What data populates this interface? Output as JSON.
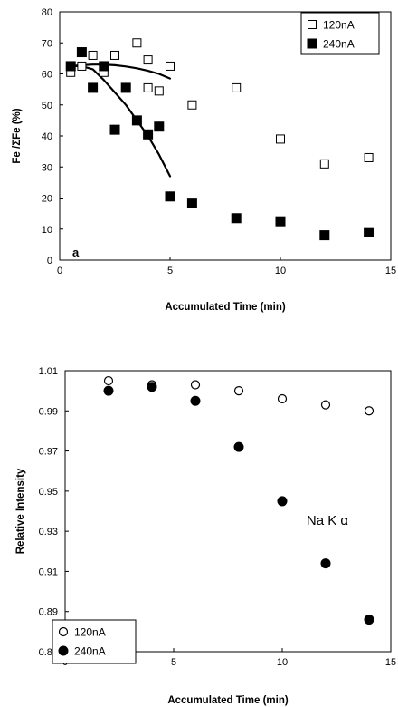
{
  "chart_data": [
    {
      "type": "scatter",
      "title": "",
      "xlabel": "Accumulated Time (min)",
      "ylabel": "Fe /ΣFe (%)",
      "xlim": [
        0,
        15
      ],
      "ylim": [
        0,
        80
      ],
      "xticks": [
        0,
        5,
        10,
        15
      ],
      "yticks": [
        0,
        10,
        20,
        30,
        40,
        50,
        60,
        70,
        80
      ],
      "grid": false,
      "legend_position": "top-right",
      "annotation": "a",
      "series": [
        {
          "name": "120nA",
          "marker": "open-square",
          "color": "#000000",
          "x": [
            0.5,
            1,
            1.5,
            2,
            2.5,
            3.5,
            4,
            4,
            4.5,
            5,
            6,
            8,
            10,
            12,
            14
          ],
          "y": [
            60.5,
            62.5,
            66,
            60.5,
            66,
            70,
            55.5,
            64.5,
            54.5,
            62.5,
            50,
            55.5,
            39,
            31,
            33
          ]
        },
        {
          "name": "240nA",
          "marker": "filled-square",
          "color": "#000000",
          "x": [
            0.5,
            1,
            1.5,
            2,
            2.5,
            3,
            3.5,
            4,
            4.5,
            5,
            6,
            8,
            10,
            12,
            14
          ],
          "y": [
            62.5,
            67,
            55.5,
            62.5,
            42,
            55.5,
            45,
            40.5,
            43,
            20.5,
            18.5,
            13.5,
            12.5,
            8,
            9
          ]
        }
      ],
      "curves": [
        {
          "of": "120nA",
          "x": [
            0.5,
            1,
            1.5,
            2,
            2.5,
            3,
            3.5,
            4,
            4.5,
            5
          ],
          "y": [
            62.5,
            62.8,
            63,
            63,
            62.8,
            62.4,
            61.8,
            61,
            60,
            58.5
          ]
        },
        {
          "of": "240nA",
          "x": [
            0.5,
            1,
            1.5,
            2,
            2.5,
            3,
            3.5,
            4,
            4.5,
            5
          ],
          "y": [
            62.5,
            62.5,
            61.5,
            58,
            54,
            50,
            45,
            40,
            34,
            27
          ]
        }
      ]
    },
    {
      "type": "scatter",
      "title": "",
      "xlabel": "Accumulated Time (min)",
      "ylabel": "Relative Intensity",
      "xlim": [
        0,
        15
      ],
      "ylim": [
        0.87,
        1.01
      ],
      "xticks": [
        0,
        5,
        10,
        15
      ],
      "yticks": [
        "0.87",
        "0.89",
        "0.91",
        "0.93",
        "0.95",
        "0.97",
        "0.99",
        "1.01"
      ],
      "grid": false,
      "legend_position": "bottom-left",
      "annotation": "Na  K α",
      "series": [
        {
          "name": "120nA",
          "marker": "open-circle",
          "color": "#000000",
          "x": [
            2,
            4,
            6,
            8,
            10,
            12,
            14
          ],
          "y": [
            1.005,
            1.003,
            1.003,
            1.0,
            0.996,
            0.993,
            0.99
          ]
        },
        {
          "name": "240nA",
          "marker": "filled-circle",
          "color": "#000000",
          "x": [
            2,
            4,
            6,
            8,
            10,
            12,
            14
          ],
          "y": [
            1.0,
            1.002,
            0.995,
            0.972,
            0.945,
            0.914,
            0.886
          ]
        }
      ]
    }
  ]
}
